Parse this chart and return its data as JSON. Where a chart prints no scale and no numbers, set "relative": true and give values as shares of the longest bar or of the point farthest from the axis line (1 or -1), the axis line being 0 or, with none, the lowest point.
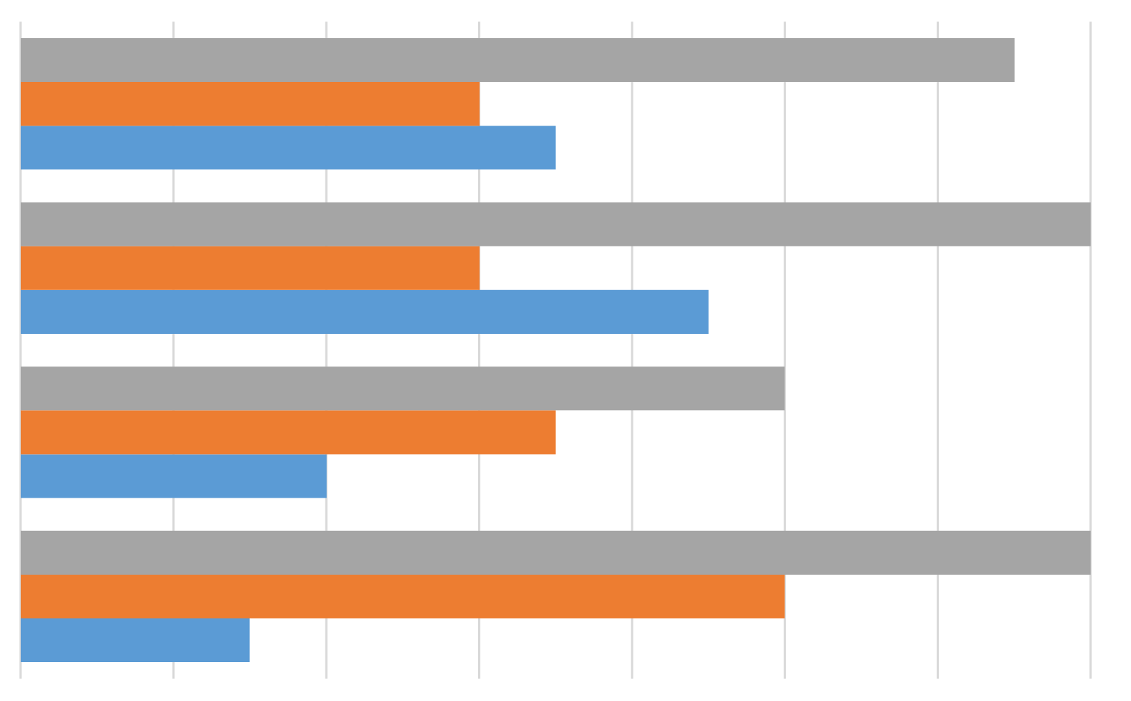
{
  "chart_data": {
    "type": "bar",
    "orientation": "horizontal",
    "relative": true,
    "grid": "x",
    "categories": [
      null,
      null,
      null,
      null
    ],
    "series": [
      {
        "color": "#5b9bd5",
        "values": [
          0.5,
          0.643,
          0.286,
          0.214
        ]
      },
      {
        "color": "#ed7d31",
        "values": [
          0.429,
          0.429,
          0.5,
          0.714
        ]
      },
      {
        "color": "#a5a5a5",
        "values": [
          0.929,
          1.0,
          0.714,
          1.0
        ]
      }
    ]
  }
}
